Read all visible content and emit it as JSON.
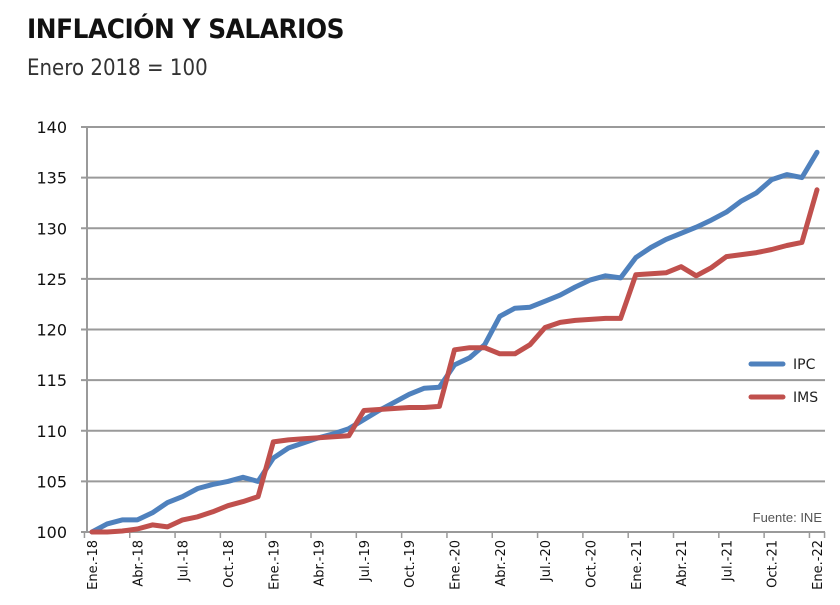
{
  "header": {
    "title": "INFLACIÓN Y SALARIOS",
    "subtitle": "Enero 2018 = 100"
  },
  "source": "Fuente: INE",
  "colors": {
    "IPC": "#4F81BD",
    "IMS": "#C0504D",
    "grid": "#9a9a9a"
  },
  "chart_data": {
    "type": "line",
    "title": "INFLACIÓN Y SALARIOS",
    "subtitle": "Enero 2018 = 100",
    "xlabel": "",
    "ylabel": "",
    "ylim": [
      100,
      140
    ],
    "yticks": [
      100,
      105,
      110,
      115,
      120,
      125,
      130,
      135,
      140
    ],
    "grid": true,
    "legend_position": "right",
    "x_tick_labels": [
      "Ene.-18",
      "Abr.-18",
      "Jul.-18",
      "Oct.-18",
      "Ene.-19",
      "Abr.-19",
      "Jul.-19",
      "Oct.-19",
      "Ene.-20",
      "Abr.-20",
      "Jul.-20",
      "Oct.-20",
      "Ene.-21",
      "Abr.-21",
      "Jul.-21",
      "Oct.-21",
      "Ene.-22"
    ],
    "x": [
      "2018-01",
      "2018-02",
      "2018-03",
      "2018-04",
      "2018-05",
      "2018-06",
      "2018-07",
      "2018-08",
      "2018-09",
      "2018-10",
      "2018-11",
      "2018-12",
      "2019-01",
      "2019-02",
      "2019-03",
      "2019-04",
      "2019-05",
      "2019-06",
      "2019-07",
      "2019-08",
      "2019-09",
      "2019-10",
      "2019-11",
      "2019-12",
      "2020-01",
      "2020-02",
      "2020-03",
      "2020-04",
      "2020-05",
      "2020-06",
      "2020-07",
      "2020-08",
      "2020-09",
      "2020-10",
      "2020-11",
      "2020-12",
      "2021-01",
      "2021-02",
      "2021-03",
      "2021-04",
      "2021-05",
      "2021-06",
      "2021-07",
      "2021-08",
      "2021-09",
      "2021-10",
      "2021-11",
      "2021-12",
      "2022-01"
    ],
    "series": [
      {
        "name": "IPC",
        "values": [
          100.0,
          100.8,
          101.2,
          101.2,
          101.9,
          102.9,
          103.5,
          104.3,
          104.7,
          105.0,
          105.4,
          105.0,
          107.3,
          108.3,
          108.8,
          109.3,
          109.7,
          110.2,
          111.1,
          112.0,
          112.8,
          113.6,
          114.2,
          114.3,
          116.5,
          117.2,
          118.5,
          121.3,
          122.1,
          122.2,
          122.8,
          123.4,
          124.2,
          124.9,
          125.3,
          125.1,
          127.1,
          128.1,
          128.9,
          129.5,
          130.1,
          130.8,
          131.6,
          132.7,
          133.5,
          134.8,
          135.3,
          135.0,
          137.5
        ]
      },
      {
        "name": "IMS",
        "values": [
          100.0,
          100.0,
          100.1,
          100.3,
          100.7,
          100.5,
          101.2,
          101.5,
          102.0,
          102.6,
          103.0,
          103.5,
          108.9,
          109.1,
          109.2,
          109.3,
          109.4,
          109.5,
          112.0,
          112.1,
          112.2,
          112.3,
          112.3,
          112.4,
          118.0,
          118.2,
          118.2,
          117.6,
          117.6,
          118.5,
          120.2,
          120.7,
          120.9,
          121.0,
          121.1,
          121.1,
          125.4,
          125.5,
          125.6,
          126.2,
          125.3,
          126.1,
          127.2,
          127.4,
          127.6,
          127.9,
          128.3,
          128.6,
          133.8
        ]
      }
    ],
    "annotations": [
      "Fuente: INE"
    ]
  }
}
